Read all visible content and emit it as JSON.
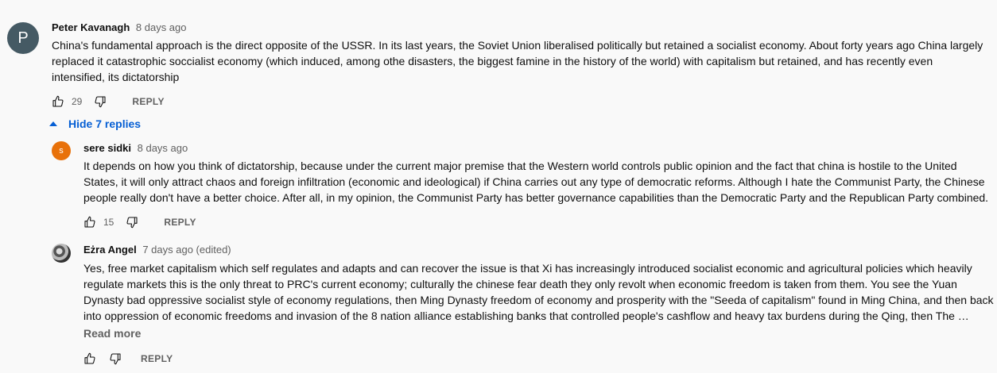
{
  "comments": {
    "main": {
      "avatar_letter": "P",
      "author": "Peter Kavanagh",
      "time": "8 days ago",
      "text": "China's fundamental approach is the direct opposite of the USSR. In its last years, the Soviet Union liberalised politically but retained a socialist economy. About forty years ago China largely\nreplaced it catastrophic soccialist economy (which induced, among othe disasters, the biggest famine in the history of the world) with capitalism but retained, and has recently even\nintensified, its dictatorship",
      "likes": "29",
      "reply_label": "REPLY",
      "replies_toggle": "Hide 7 replies"
    },
    "replies": [
      {
        "avatar_letter": "s",
        "author": "sere sidki",
        "time": "8 days ago",
        "text": "It depends on how you think of dictatorship, because under the current major premise that the Western world controls public opinion and the fact that china is hostile to the United\nStates, it will only attract chaos and foreign infiltration (economic and ideological) if China carries out any type of democratic reforms. Although I hate the Communist Party, the Chinese\npeople really don't have a better choice. After all, in my opinion, the Communist Party has better governance capabilities than the Democratic Party and the Republican Party combined.",
        "likes": "15",
        "reply_label": "REPLY"
      },
      {
        "author": "Eżra Angel",
        "time": "7 days ago (edited)",
        "text": "Yes, free market capitalism which self regulates and adapts and can recover the issue is that Xi has increasingly introduced socialist economic and agricultural policies which heavily\nregulate markets this is the only threat to PRC's current economy; culturally the chinese fear death they only revolt when economic freedom is taken from them. You see the Yuan\nDynasty bad oppressive socialist style of economy regulations, then Ming Dynasty freedom of economy and prosperity with the \"Seeda of capitalism\" found in Ming China, and then back\ninto oppression of economic freedoms and invasion of the 8 nation alliance establishing banks that controlled people's cashflow and heavy tax burdens during the Qing, then The …",
        "read_more": "Read more",
        "reply_label": "REPLY"
      }
    ]
  },
  "colors": {
    "background": "#f9f9f9",
    "link_blue": "#065fd4",
    "meta_gray": "#606060",
    "avatar_main": "#455a64",
    "avatar_sere": "#e8710a"
  },
  "icons": {
    "like": "thumbs-up-icon",
    "dislike": "thumbs-down-icon",
    "toggle": "caret-up-icon"
  }
}
